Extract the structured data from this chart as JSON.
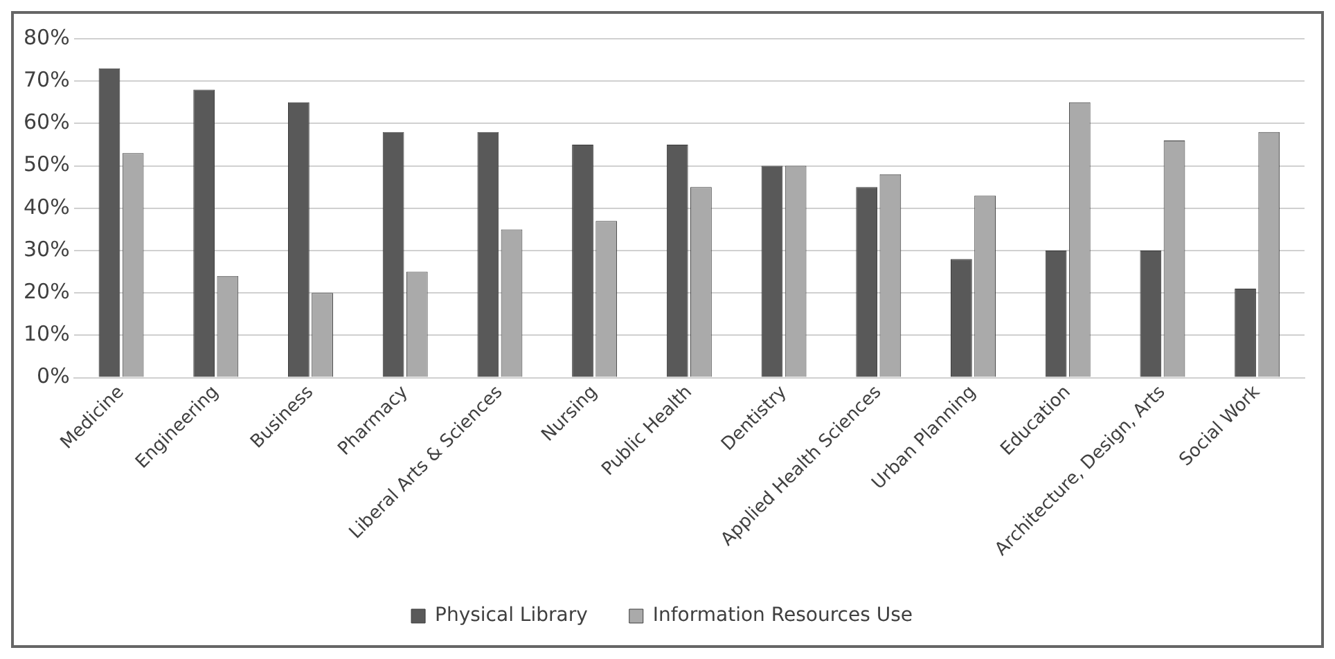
{
  "chart_data": {
    "type": "bar",
    "categories": [
      "Medicine",
      "Engineering",
      "Business",
      "Pharmacy",
      "Liberal Arts & Sciences",
      "Nursing",
      "Public Health",
      "Dentistry",
      "Applied Health Sciences",
      "Urban Planning",
      "Education",
      "Architecture, Design, Arts",
      "Social Work"
    ],
    "series": [
      {
        "name": "Physical Library",
        "color": "#595959",
        "values": [
          73,
          68,
          65,
          58,
          58,
          55,
          55,
          50,
          45,
          28,
          30,
          30,
          21
        ]
      },
      {
        "name": "Information Resources Use",
        "color": "#aaaaaa",
        "values": [
          53,
          24,
          20,
          25,
          35,
          37,
          45,
          50,
          48,
          43,
          65,
          56,
          58
        ]
      }
    ],
    "ylim": [
      0,
      80
    ],
    "yticks": [
      {
        "value": 0,
        "label": "0%"
      },
      {
        "value": 10,
        "label": "10%"
      },
      {
        "value": 20,
        "label": "20%"
      },
      {
        "value": 30,
        "label": "30%"
      },
      {
        "value": 40,
        "label": "40%"
      },
      {
        "value": 50,
        "label": "50%"
      },
      {
        "value": 60,
        "label": "60%"
      },
      {
        "value": 70,
        "label": "70%"
      },
      {
        "value": 80,
        "label": "80%"
      }
    ],
    "grid": "y",
    "legend": "bottom"
  }
}
